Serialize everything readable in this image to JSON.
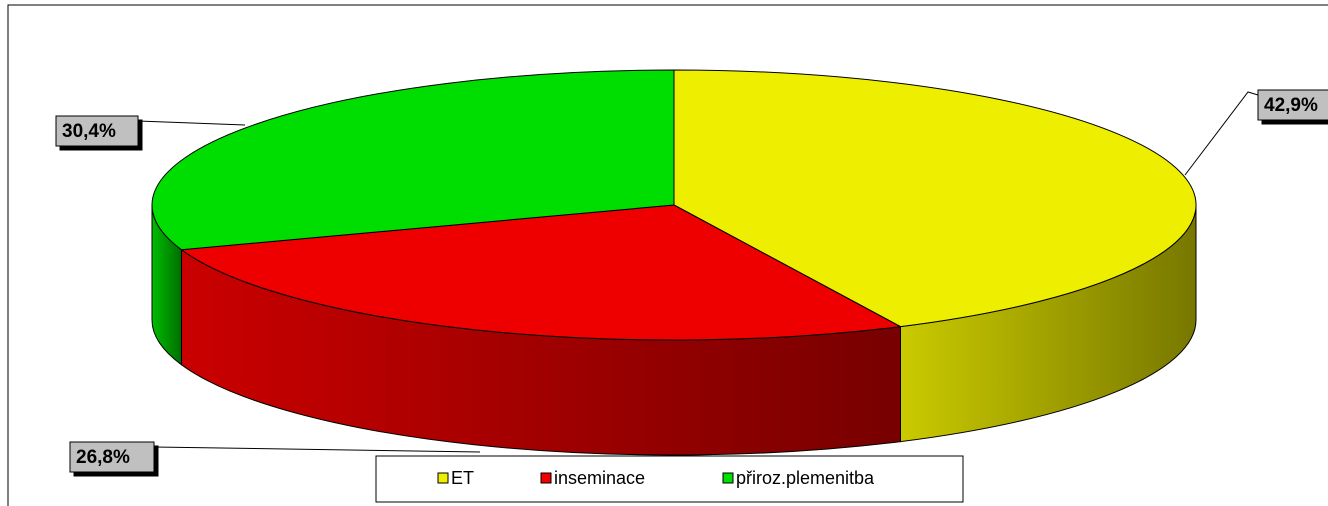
{
  "chart_data": {
    "type": "pie3d",
    "categories": [
      "ET",
      "inseminace",
      "přiroz.plemenitba"
    ],
    "values": [
      42.9,
      26.8,
      30.4
    ],
    "value_labels": [
      "42,9%",
      "26,8%",
      "30,4%"
    ],
    "colors": [
      "#eeee00",
      "#ee0000",
      "#00dd00"
    ],
    "legend": "bottom"
  }
}
